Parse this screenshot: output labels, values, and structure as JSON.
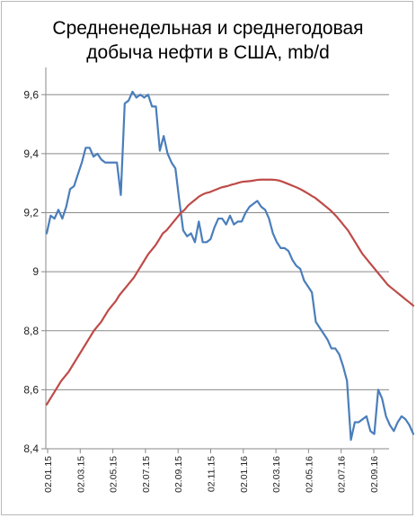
{
  "chart_data": {
    "type": "line",
    "title_lines": [
      "Средненедельная и среднегодовая",
      "добыча нефти в США, mb/d"
    ],
    "xlabel": "",
    "ylabel": "",
    "x_tick_labels": [
      "02.01.15",
      "02.03.15",
      "02.05.15",
      "02.07.15",
      "02.09.15",
      "02.11.15",
      "02.01.16",
      "02.03.16",
      "02.05.16",
      "02.07.16",
      "02.09.16"
    ],
    "y_tick_labels": [
      "8,4",
      "8,6",
      "8,8",
      "9",
      "9,2",
      "9,4",
      "9,6"
    ],
    "y_ticks": [
      8.4,
      8.6,
      8.8,
      9.0,
      9.2,
      9.4,
      9.6
    ],
    "ylim": [
      8.4,
      9.68
    ],
    "grid": "horizontal",
    "legend": "none",
    "series": [
      {
        "color": "#4a7ebb",
        "values": [
          9.13,
          9.19,
          9.18,
          9.21,
          9.18,
          9.22,
          9.28,
          9.29,
          9.33,
          9.37,
          9.42,
          9.42,
          9.39,
          9.4,
          9.38,
          9.37,
          9.37,
          9.37,
          9.37,
          9.26,
          9.57,
          9.58,
          9.61,
          9.59,
          9.6,
          9.59,
          9.6,
          9.56,
          9.56,
          9.41,
          9.46,
          9.4,
          9.37,
          9.35,
          9.24,
          9.14,
          9.12,
          9.13,
          9.1,
          9.17,
          9.1,
          9.1,
          9.11,
          9.15,
          9.18,
          9.18,
          9.16,
          9.19,
          9.16,
          9.17,
          9.17,
          9.2,
          9.22,
          9.23,
          9.24,
          9.22,
          9.21,
          9.18,
          9.13,
          9.1,
          9.08,
          9.08,
          9.07,
          9.04,
          9.02,
          9.01,
          8.97,
          8.95,
          8.93,
          8.83,
          8.81,
          8.79,
          8.77,
          8.74,
          8.74,
          8.72,
          8.68,
          8.63,
          8.43,
          8.49,
          8.49,
          8.5,
          8.51,
          8.46,
          8.45,
          8.6,
          8.57,
          8.51,
          8.48,
          8.46,
          8.49,
          8.51,
          8.5,
          8.48,
          8.45
        ]
      },
      {
        "color": "#be4b48",
        "values": [
          8.55,
          8.57,
          8.59,
          8.61,
          8.63,
          8.645,
          8.66,
          8.68,
          8.7,
          8.72,
          8.74,
          8.76,
          8.78,
          8.8,
          8.815,
          8.83,
          8.85,
          8.87,
          8.885,
          8.9,
          8.92,
          8.935,
          8.95,
          8.965,
          8.98,
          9.0,
          9.02,
          9.04,
          9.06,
          9.075,
          9.09,
          9.11,
          9.13,
          9.14,
          9.155,
          9.17,
          9.185,
          9.2,
          9.21,
          9.225,
          9.235,
          9.245,
          9.255,
          9.262,
          9.267,
          9.27,
          9.275,
          9.28,
          9.285,
          9.288,
          9.291,
          9.295,
          9.298,
          9.302,
          9.305,
          9.306,
          9.307,
          9.309,
          9.311,
          9.312,
          9.312,
          9.312,
          9.312,
          9.311,
          9.309,
          9.305,
          9.3,
          9.295,
          9.29,
          9.285,
          9.279,
          9.272,
          9.265,
          9.257,
          9.25,
          9.24,
          9.23,
          9.22,
          9.21,
          9.198,
          9.185,
          9.17,
          9.155,
          9.14,
          9.12,
          9.1,
          9.08,
          9.06,
          9.045,
          9.03,
          9.015,
          9.0,
          8.985,
          8.97,
          8.955,
          8.945,
          8.935,
          8.925,
          8.915,
          8.905,
          8.895,
          8.885
        ]
      }
    ]
  }
}
